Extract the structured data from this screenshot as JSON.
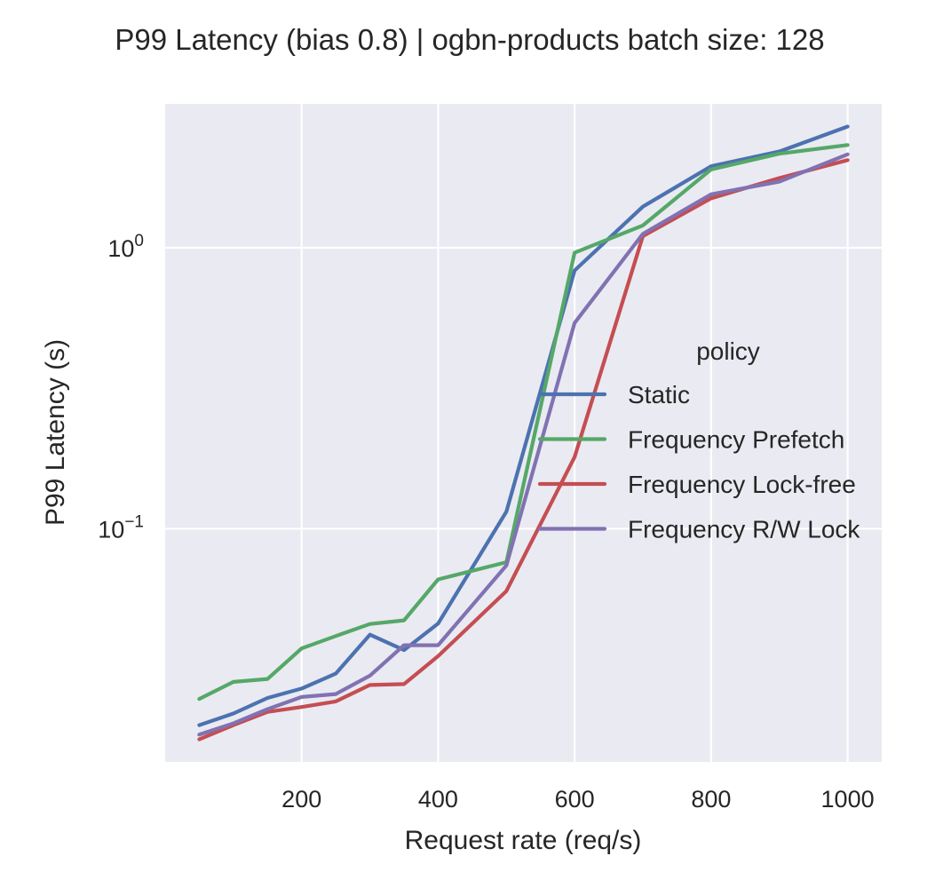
{
  "chart_data": {
    "type": "line",
    "title": "P99 Latency (bias 0.8) | ogbn-products batch size: 128",
    "xlabel": "Request rate (req/s)",
    "ylabel": "P99 Latency (s)",
    "xlim": [
      0,
      1050
    ],
    "ylim": [
      0.0148,
      3.25
    ],
    "yscale": "log",
    "xticks": [
      200,
      400,
      600,
      800,
      1000
    ],
    "xtick_labels": [
      "200",
      "400",
      "600",
      "800",
      "1000"
    ],
    "yticks": [
      {
        "value": 0.1,
        "base": "10",
        "exp": "−1"
      },
      {
        "value": 1,
        "base": "10",
        "exp": "0"
      }
    ],
    "grid": true,
    "background": "#eaeaf2",
    "legend": {
      "title": "policy",
      "placement": "center-right"
    },
    "x": [
      50,
      100,
      150,
      200,
      250,
      300,
      350,
      400,
      500,
      600,
      700,
      800,
      900,
      1000
    ],
    "series": [
      {
        "name": "Static",
        "color": "#4c72b0",
        "values": [
          0.02,
          0.022,
          0.025,
          0.027,
          0.0305,
          0.042,
          0.037,
          0.046,
          0.115,
          0.83,
          1.4,
          1.95,
          2.2,
          2.7
        ]
      },
      {
        "name": "Frequency Prefetch",
        "color": "#55a868",
        "values": [
          0.0248,
          0.0285,
          0.0292,
          0.0375,
          0.0415,
          0.0458,
          0.0472,
          0.066,
          0.076,
          0.96,
          1.2,
          1.9,
          2.16,
          2.32
        ]
      },
      {
        "name": "Frequency Lock-free",
        "color": "#c44e52",
        "values": [
          0.0178,
          0.02,
          0.0223,
          0.0232,
          0.0243,
          0.0278,
          0.028,
          0.0352,
          0.06,
          0.18,
          1.1,
          1.5,
          1.77,
          2.05
        ]
      },
      {
        "name": "Frequency R/W Lock",
        "color": "#8172b2",
        "values": [
          0.0185,
          0.0203,
          0.0228,
          0.0252,
          0.0258,
          0.03,
          0.0385,
          0.0385,
          0.074,
          0.54,
          1.12,
          1.55,
          1.72,
          2.15
        ]
      }
    ]
  }
}
